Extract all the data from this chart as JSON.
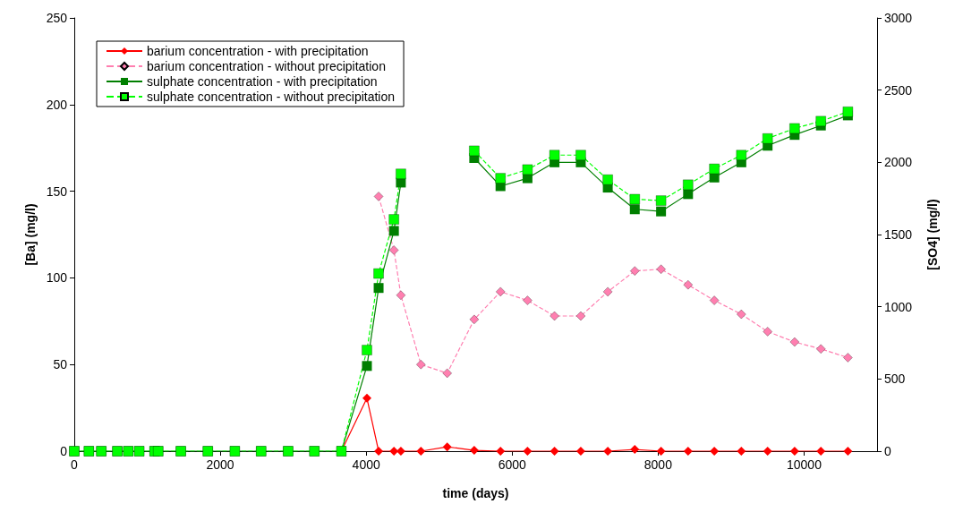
{
  "chart_data": {
    "type": "line",
    "xlabel": "time (days)",
    "ylabel": "[Ba] (mg/l)",
    "y2label": "[SO4] (mg/l)",
    "x": [
      0,
      200,
      370,
      590,
      740,
      890,
      1100,
      1150,
      1460,
      1830,
      2200,
      2560,
      2930,
      3290,
      3660,
      4010,
      4170,
      4380,
      4475,
      4750,
      5110,
      5480,
      5840,
      6210,
      6580,
      6940,
      7310,
      7680,
      8040,
      8410,
      8770,
      9140,
      9500,
      9870,
      10230,
      10600
    ],
    "series": [
      {
        "name": "barium concentration - with precipitation",
        "color": "#ff0000",
        "marker": "diamond",
        "line_style": "solid",
        "values": [
          null,
          null,
          null,
          null,
          null,
          null,
          null,
          null,
          null,
          null,
          null,
          null,
          null,
          null,
          0,
          30.6,
          0,
          0,
          0,
          0,
          2.5,
          0.5,
          0,
          0,
          0,
          0,
          0,
          1,
          0,
          0,
          0,
          0,
          0,
          0,
          0,
          0
        ]
      },
      {
        "name": "barium concentration - without precipitation",
        "color": "#ff7fb0",
        "marker": "diamond",
        "line_style": "dashed",
        "values": [
          null,
          null,
          null,
          null,
          null,
          null,
          null,
          null,
          null,
          null,
          null,
          null,
          null,
          null,
          null,
          null,
          147,
          116,
          90,
          50,
          45,
          76,
          92,
          87,
          78,
          78,
          92,
          104,
          105,
          96,
          87,
          79,
          69,
          63,
          59,
          54
        ]
      },
      {
        "name": "sulphate concentration - with precipitation",
        "color": "#007f00",
        "marker": "square",
        "line_style": "solid",
        "axis": "y2",
        "values": [
          0,
          0,
          0,
          0,
          0,
          0,
          0,
          0,
          0,
          0,
          0,
          0,
          0,
          0,
          0,
          590,
          1130,
          1525,
          1860,
          null,
          null,
          2030,
          1835,
          1890,
          2000,
          2000,
          1825,
          1675,
          1660,
          1780,
          1895,
          2000,
          2115,
          2190,
          2255,
          2325
        ]
      },
      {
        "name": "sulphate concentration - without precipitation",
        "color": "#00ff00",
        "marker": "square",
        "line_style": "dashed",
        "axis": "y2",
        "values": [
          0,
          0,
          0,
          0,
          0,
          0,
          0,
          0,
          0,
          0,
          0,
          0,
          0,
          0,
          0,
          700,
          1230,
          1605,
          1920,
          null,
          null,
          2080,
          1890,
          1950,
          2050,
          2050,
          1880,
          1745,
          1735,
          1845,
          1955,
          2050,
          2165,
          2235,
          2285,
          2350
        ]
      }
    ],
    "xlim": [
      0,
      11000
    ],
    "xticks": [
      0,
      2000,
      4000,
      6000,
      8000,
      10000
    ],
    "ylim": [
      0,
      250
    ],
    "yticks": [
      0,
      50,
      100,
      150,
      200,
      250
    ],
    "y2lim": [
      0,
      3000
    ],
    "y2ticks": [
      0,
      500,
      1000,
      1500,
      2000,
      2500,
      3000
    ],
    "grid": false,
    "legend": "top left"
  }
}
